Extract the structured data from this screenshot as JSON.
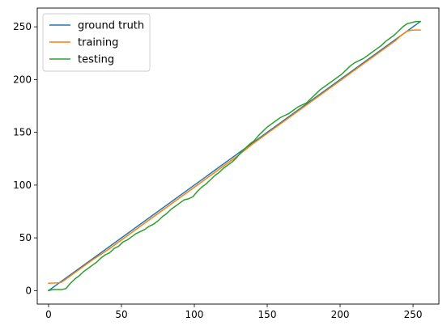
{
  "chart_data": {
    "type": "line",
    "title": "",
    "xlabel": "",
    "ylabel": "",
    "xlim": [
      -7.75,
      267.75
    ],
    "ylim": [
      -12.75,
      267.75
    ],
    "xticks": [
      0,
      50,
      100,
      150,
      200,
      250
    ],
    "yticks": [
      0,
      50,
      100,
      150,
      200,
      250
    ],
    "grid": false,
    "legend_position": "upper-left",
    "series": [
      {
        "name": "ground truth",
        "color": "#1f77b4",
        "x": [
          0,
          255
        ],
        "y": [
          0,
          255
        ]
      },
      {
        "name": "training",
        "color": "#ff7f0e",
        "x": [
          0,
          8,
          10,
          20,
          30,
          40,
          50,
          60,
          70,
          80,
          90,
          100,
          110,
          120,
          130,
          140,
          150,
          160,
          170,
          180,
          190,
          200,
          210,
          220,
          230,
          238,
          242,
          246,
          250,
          255
        ],
        "y": [
          7,
          7.5,
          9,
          19,
          29,
          38,
          48,
          58,
          68,
          78,
          88,
          98,
          108,
          118,
          128,
          139,
          149,
          159,
          169,
          179,
          189,
          199,
          209,
          219,
          229,
          237,
          242,
          246,
          247,
          247
        ]
      },
      {
        "name": "testing",
        "color": "#2ca02c",
        "x": [
          0,
          3,
          6,
          9,
          12,
          15,
          18,
          21,
          24,
          27,
          30,
          33,
          36,
          39,
          42,
          45,
          48,
          51,
          54,
          57,
          60,
          63,
          66,
          69,
          72,
          75,
          78,
          81,
          84,
          87,
          90,
          93,
          96,
          99,
          102,
          105,
          108,
          111,
          114,
          117,
          120,
          123,
          126,
          129,
          132,
          135,
          138,
          141,
          144,
          147,
          150,
          153,
          156,
          159,
          162,
          165,
          168,
          171,
          174,
          177,
          180,
          183,
          186,
          189,
          192,
          195,
          198,
          201,
          204,
          207,
          210,
          213,
          216,
          219,
          222,
          225,
          228,
          231,
          234,
          237,
          240,
          243,
          246,
          249,
          252,
          255
        ],
        "y": [
          0,
          1,
          1,
          1,
          2,
          7,
          11,
          14,
          18,
          21,
          24,
          27,
          31,
          34,
          36,
          40,
          42,
          46,
          48,
          51,
          54,
          56,
          58,
          61,
          63,
          66,
          70,
          73,
          77,
          80,
          83,
          86,
          87,
          89,
          94,
          98,
          101,
          105,
          109,
          112,
          116,
          119,
          122,
          126,
          131,
          135,
          139,
          142,
          147,
          151,
          155,
          158,
          161,
          164,
          166,
          168,
          171,
          174,
          176,
          178,
          182,
          186,
          190,
          193,
          196,
          199,
          202,
          205,
          209,
          213,
          216,
          218,
          220,
          223,
          226,
          229,
          232,
          236,
          239,
          242,
          246,
          250,
          253,
          254,
          255,
          255
        ]
      }
    ]
  }
}
